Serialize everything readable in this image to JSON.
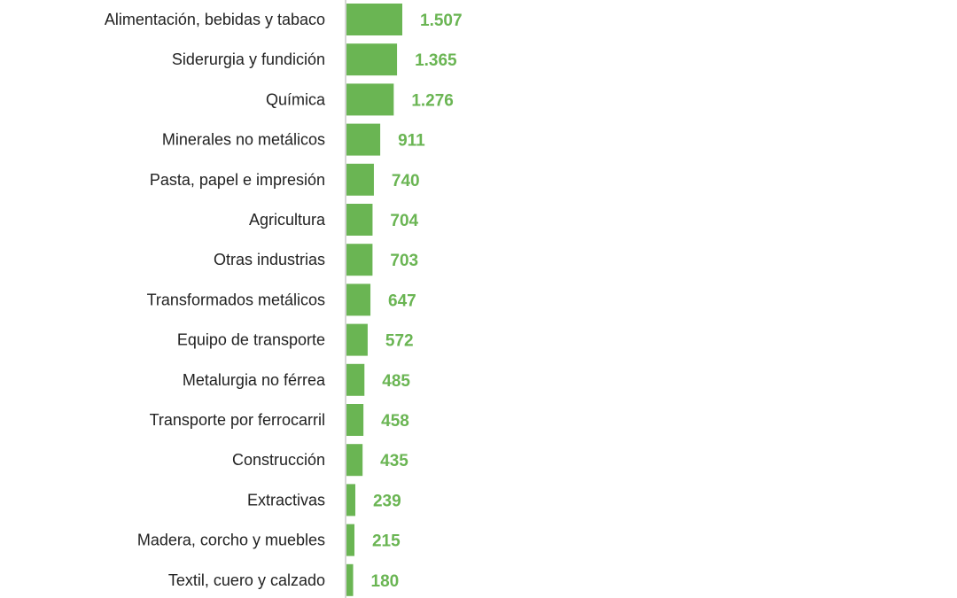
{
  "chart_data": {
    "type": "bar",
    "orientation": "horizontal",
    "categories": [
      "Alimentación, bebidas y tabaco",
      "Siderurgia y fundición",
      "Química",
      "Minerales no metálicos",
      "Pasta, papel e impresión",
      "Agricultura",
      "Otras industrias",
      "Transformados metálicos",
      "Equipo de transporte",
      "Metalurgia no férrea",
      "Transporte por ferrocarril",
      "Construcción",
      "Extractivas",
      "Madera, corcho y muebles",
      "Textil, cuero y calzado"
    ],
    "values": [
      1507,
      1365,
      1276,
      911,
      740,
      704,
      703,
      647,
      572,
      485,
      458,
      435,
      239,
      215,
      180
    ],
    "value_labels": [
      "1.507",
      "1.365",
      "1.276",
      "911",
      "740",
      "704",
      "703",
      "647",
      "572",
      "485",
      "458",
      "435",
      "239",
      "215",
      "180"
    ],
    "title": "",
    "xlabel": "",
    "ylabel": "",
    "grid": false,
    "legend": "none",
    "colors": {
      "bar": "#6ab553",
      "value_text": "#6ab553",
      "axis": "#c8c8c8",
      "category_text": "#222222"
    }
  }
}
